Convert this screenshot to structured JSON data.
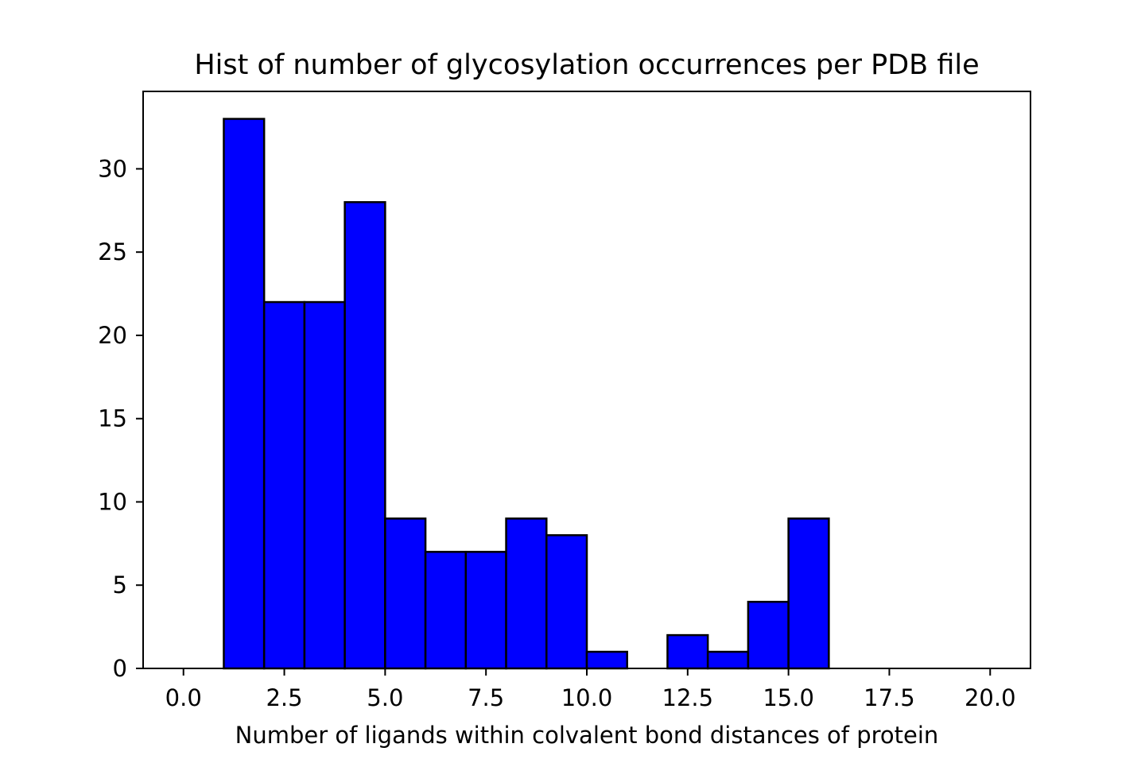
{
  "chart_data": {
    "type": "bar",
    "title": "Hist of number of glycosylation occurrences per PDB file",
    "xlabel": "Number of ligands within colvalent bond distances of protein",
    "ylabel": "",
    "bin_edges": [
      0,
      1,
      2,
      3,
      4,
      5,
      6,
      7,
      8,
      9,
      10,
      11,
      12,
      13,
      14,
      15,
      16,
      17,
      18,
      19,
      20
    ],
    "values": [
      0,
      33,
      22,
      22,
      28,
      9,
      7,
      7,
      9,
      8,
      1,
      0,
      2,
      1,
      4,
      9,
      0,
      0,
      0,
      0
    ],
    "xlim": [
      -1,
      21
    ],
    "ylim": [
      0,
      34.65
    ],
    "xticks": [
      0,
      2.5,
      5,
      7.5,
      10,
      12.5,
      15,
      17.5,
      20
    ],
    "xtick_labels": [
      "0.0",
      "2.5",
      "5.0",
      "7.5",
      "10.0",
      "12.5",
      "15.0",
      "17.5",
      "20.0"
    ],
    "yticks": [
      0,
      5,
      10,
      15,
      20,
      25,
      30
    ],
    "ytick_labels": [
      "0",
      "5",
      "10",
      "15",
      "20",
      "25",
      "30"
    ],
    "grid": false,
    "legend": "none",
    "colors": {
      "bar_fill": "#0000ff",
      "bar_edge": "#000000"
    }
  }
}
